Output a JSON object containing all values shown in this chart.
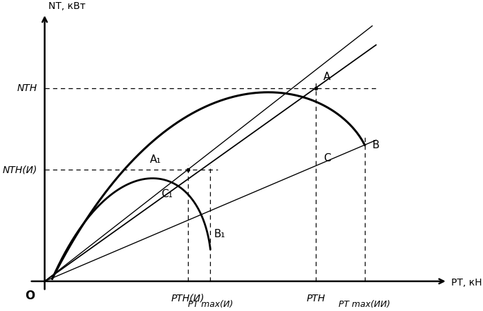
{
  "xlabel": "PТ, кН",
  "ylabel": "NТ, кВт",
  "origin_label": "O",
  "pt_hn_i": 0.38,
  "pt_hn": 0.72,
  "pt_max_i": 0.44,
  "pt_max_ii": 0.85,
  "n_hn_i": 0.45,
  "n_hn": 0.78,
  "point_A": [
    0.72,
    0.78
  ],
  "point_B": [
    0.85,
    0.55
  ],
  "point_A1": [
    0.38,
    0.45
  ],
  "point_C1": [
    0.36,
    0.32
  ],
  "point_B1_label": [
    0.44,
    0.22
  ],
  "label_A": "A",
  "label_B": "B",
  "label_C": "C",
  "label_A1": "A₁",
  "label_C1": "C₁",
  "label_B1": "B₁",
  "label_Nth": "NТН",
  "label_Nth_i": "NТН(И)",
  "label_Pth_i": "PТН(И)",
  "label_Pth": "PТН",
  "label_Ptmax_i": "PТ max(И)",
  "label_Ptmax_ii": "PТ max(ИИ)",
  "background_color": "#ffffff",
  "line_color": "#000000"
}
